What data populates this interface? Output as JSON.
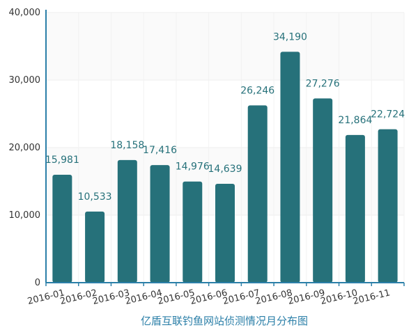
{
  "chart_data": {
    "type": "bar",
    "title": "",
    "xlabel": "亿盾互联钓鱼网站侦测情况月分布图",
    "ylabel": "",
    "categories": [
      "2016-01",
      "2016-02",
      "2016-03",
      "2016-04",
      "2016-05",
      "2016-06",
      "2016-07",
      "2016-08",
      "2016-09",
      "2016-10",
      "2016-11"
    ],
    "values": [
      15981,
      10533,
      18158,
      17416,
      14976,
      14639,
      26246,
      34190,
      27276,
      21864,
      22724
    ],
    "value_labels": [
      "15,981",
      "10,533",
      "18,158",
      "17,416",
      "14,976",
      "14,639",
      "26,246",
      "34,190",
      "27,276",
      "21,864",
      "22,724"
    ],
    "ylim": [
      0,
      40000
    ],
    "yticks": [
      0,
      10000,
      20000,
      30000,
      40000
    ],
    "ytick_labels": [
      "0",
      "10,000",
      "20,000",
      "30,000",
      "40,000"
    ],
    "grid": true,
    "legend": "none",
    "colors": {
      "bar": "#26717a",
      "data_label": "#26717a",
      "axis": "#2b7fa8",
      "xlabel": "#2b7fa8",
      "grid": "#eeeeee"
    }
  }
}
